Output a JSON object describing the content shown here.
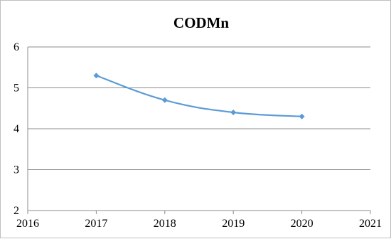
{
  "chart_data": {
    "type": "line",
    "title": "CODMn",
    "xlabel": "",
    "ylabel": "",
    "xlim": [
      2016,
      2021
    ],
    "ylim": [
      2,
      6
    ],
    "x_ticks": [
      "2016",
      "2017",
      "2018",
      "2019",
      "2020",
      "2021"
    ],
    "y_ticks": [
      "2",
      "3",
      "4",
      "5",
      "6"
    ],
    "grid": "horizontal",
    "legend": "none",
    "series": [
      {
        "x": [
          2017,
          2018,
          2019,
          2020
        ],
        "values": [
          5.3,
          4.7,
          4.4,
          4.3
        ],
        "color": "#5b9bd5",
        "marker": "diamond"
      }
    ]
  }
}
